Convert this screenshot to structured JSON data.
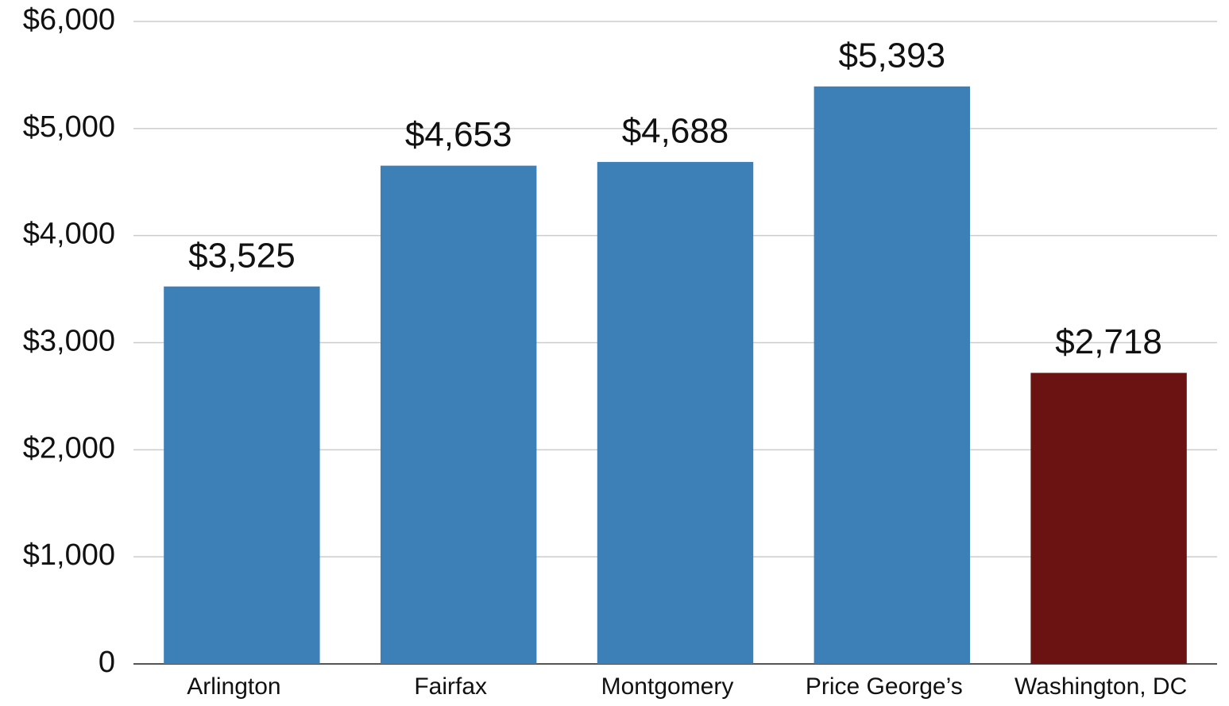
{
  "chart_data": {
    "type": "bar",
    "categories": [
      "Arlington",
      "Fairfax",
      "Montgomery",
      "Price George’s",
      "Washington, DC"
    ],
    "values": [
      3525,
      4653,
      4688,
      5393,
      2718
    ],
    "value_labels": [
      "$3,525",
      "$4,653",
      "$4,688",
      "$5,393",
      "$2,718"
    ],
    "colors": [
      "#3d80b8",
      "#3d80b8",
      "#3d80b8",
      "#3d80b8",
      "#6b1212"
    ],
    "ylim": [
      0,
      6000
    ],
    "yticks": [
      0,
      {
        "value": 1000,
        "label": "$1,000"
      },
      {
        "value": 2000,
        "label": "$2,000"
      },
      {
        "value": 3000,
        "label": "$3,000"
      },
      {
        "value": 4000,
        "label": "$4,000"
      },
      {
        "value": 5000,
        "label": "$5,000"
      },
      {
        "value": 6000,
        "label": "$6,000"
      }
    ],
    "grid": true
  }
}
